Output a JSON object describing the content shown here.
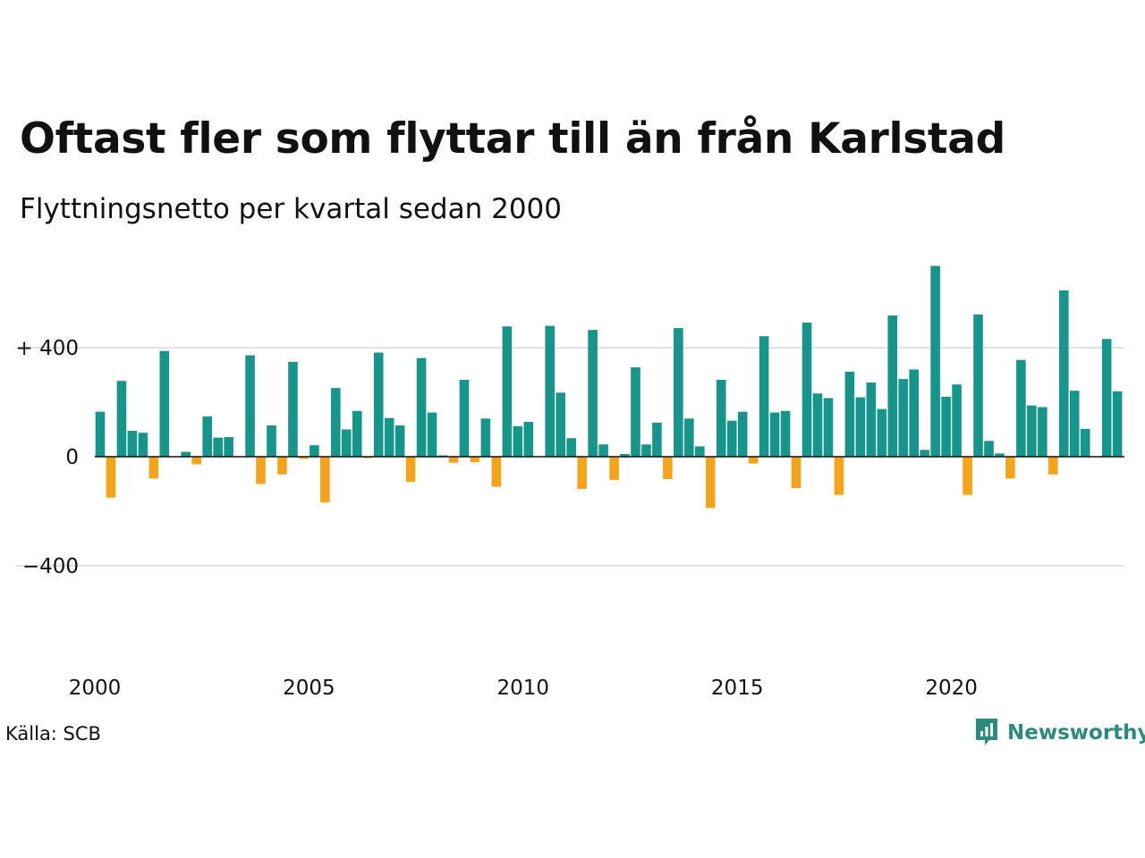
{
  "header": {
    "title": "Oftast fler som flyttar till än från Karlstad",
    "subtitle": "Flyttningsnetto per kvartal sedan 2000"
  },
  "footer": {
    "source": "Källa: SCB",
    "brand": "Newsworthy"
  },
  "colors": {
    "positive": "#16968a",
    "negative": "#f5a31a",
    "grid": "#e2e2e2",
    "axis": "#111111",
    "brand": "#2b8c7e"
  },
  "chart_data": {
    "type": "bar",
    "x_tick_labels": [
      "2000",
      "2005",
      "2010",
      "2015",
      "2020"
    ],
    "y_tick_labels": [
      "+ 400",
      "0",
      "−400"
    ],
    "y_ticks": [
      400,
      0,
      -400
    ],
    "ylim": [
      -590,
      720
    ],
    "grid": true,
    "series": [
      {
        "values": [
          165,
          -150,
          278,
          95,
          88,
          -80,
          388,
          0,
          18,
          -28,
          148,
          70,
          72,
          0,
          372,
          -100,
          115,
          -65,
          348,
          -8,
          42,
          -168,
          252,
          100,
          168,
          -5,
          382,
          142,
          115,
          -92,
          362,
          162,
          5,
          -22,
          282,
          -20,
          140,
          -110,
          478,
          112,
          128,
          0,
          480,
          235,
          68,
          -118,
          465,
          45,
          -85,
          10,
          328,
          45,
          125,
          -82,
          472,
          140,
          38,
          -188,
          282,
          132,
          165,
          -25,
          442,
          162,
          168,
          -115,
          492,
          232,
          215,
          -140,
          312,
          218,
          272,
          175,
          518,
          285,
          320,
          25,
          700,
          220,
          265,
          -140,
          522,
          58,
          12,
          -80,
          355,
          188,
          182,
          -65,
          610,
          242,
          102,
          0,
          432,
          240
        ]
      }
    ]
  }
}
